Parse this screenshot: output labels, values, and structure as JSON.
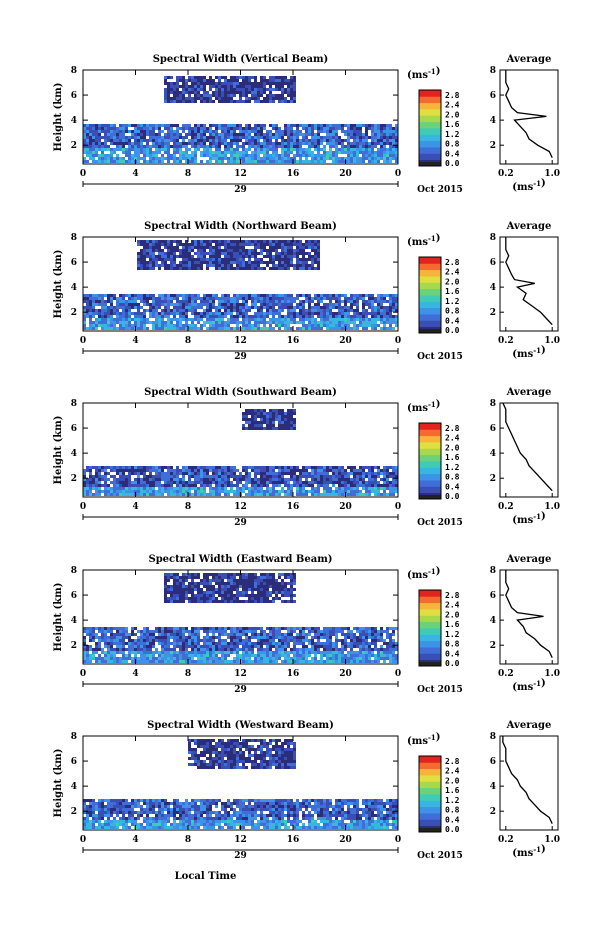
{
  "colors": {
    "colormap": [
      "#2b2c7a",
      "#3a4fb5",
      "#3f6fd6",
      "#3d93e8",
      "#37b6e2",
      "#40cbb4",
      "#6ad27a",
      "#a8d84c",
      "#dfe040",
      "#f6b43a",
      "#f36b2f",
      "#e2241e"
    ]
  },
  "chart_data": [
    {
      "type": "heatmap",
      "title": "Spectral Width (Vertical Beam)",
      "ylabel": "Height (km)",
      "y_ticks": [
        "2",
        "4",
        "6",
        "8"
      ],
      "x_ticks": [
        "0",
        "4",
        "8",
        "12",
        "16",
        "20",
        "0"
      ],
      "date_tick": "29",
      "date_label": "Oct 2015",
      "colorbar_unit": "(ms⁻¹)",
      "colorbar_ticks": [
        "0.0",
        "0.4",
        "0.8",
        "1.2",
        "1.6",
        "2.0",
        "2.4",
        "2.8"
      ],
      "xlim": [
        0,
        24
      ],
      "ylim": [
        0.5,
        8
      ],
      "zlim": [
        0,
        3
      ],
      "regions": [
        {
          "x": [
            0,
            24
          ],
          "y": [
            0.6,
            3.8
          ],
          "z": 0.5
        },
        {
          "x": [
            0,
            24
          ],
          "y": [
            0.6,
            1.8
          ],
          "z": 0.9
        },
        {
          "x": [
            6,
            16
          ],
          "y": [
            5.6,
            7.6
          ],
          "z": 0.2
        }
      ],
      "average_profile": {
        "title": "Average",
        "xlabel": "(ms⁻¹)",
        "x_ticks": [
          "0.2",
          "1.0"
        ],
        "y_ticks": [
          "2",
          "4",
          "6",
          "8"
        ],
        "xlim": [
          0.1,
          1.1
        ],
        "ylim": [
          0.5,
          8
        ],
        "height": [
          1,
          1.5,
          2,
          2.5,
          3,
          3.5,
          4,
          4.3,
          4.6,
          5,
          5.5,
          6,
          6.5,
          7,
          7.5,
          8
        ],
        "width": [
          1.0,
          0.95,
          0.75,
          0.6,
          0.55,
          0.45,
          0.35,
          0.9,
          0.4,
          0.3,
          0.25,
          0.2,
          0.25,
          0.2,
          0.2,
          0.2
        ]
      }
    },
    {
      "type": "heatmap",
      "title": "Spectral Width (Northward Beam)",
      "ylabel": "Height (km)",
      "y_ticks": [
        "2",
        "4",
        "6",
        "8"
      ],
      "x_ticks": [
        "0",
        "4",
        "8",
        "12",
        "16",
        "20",
        "0"
      ],
      "date_tick": "29",
      "date_label": "Oct 2015",
      "colorbar_unit": "(ms⁻¹)",
      "colorbar_ticks": [
        "0.0",
        "0.4",
        "0.8",
        "1.2",
        "1.6",
        "2.0",
        "2.4",
        "2.8"
      ],
      "xlim": [
        0,
        24
      ],
      "ylim": [
        0.5,
        8
      ],
      "zlim": [
        0,
        3
      ],
      "regions": [
        {
          "x": [
            0,
            24
          ],
          "y": [
            0.6,
            3.6
          ],
          "z": 0.5
        },
        {
          "x": [
            0,
            24
          ],
          "y": [
            0.6,
            1.6
          ],
          "z": 0.9
        },
        {
          "x": [
            4,
            18
          ],
          "y": [
            5.6,
            7.8
          ],
          "z": 0.2
        }
      ],
      "average_profile": {
        "title": "Average",
        "xlabel": "(ms⁻¹)",
        "x_ticks": [
          "0.2",
          "1.0"
        ],
        "y_ticks": [
          "2",
          "4",
          "6",
          "8"
        ],
        "xlim": [
          0.1,
          1.1
        ],
        "ylim": [
          0.5,
          8
        ],
        "height": [
          1,
          1.5,
          2,
          2.5,
          3,
          3.5,
          4,
          4.3,
          4.6,
          5,
          5.5,
          6,
          6.5,
          7,
          7.5,
          8
        ],
        "width": [
          1.0,
          0.9,
          0.8,
          0.65,
          0.5,
          0.55,
          0.4,
          0.7,
          0.35,
          0.3,
          0.25,
          0.2,
          0.25,
          0.2,
          0.2,
          0.2
        ]
      }
    },
    {
      "type": "heatmap",
      "title": "Spectral Width (Southward Beam)",
      "ylabel": "Height (km)",
      "y_ticks": [
        "2",
        "4",
        "6",
        "8"
      ],
      "x_ticks": [
        "0",
        "4",
        "8",
        "12",
        "16",
        "20",
        "0"
      ],
      "date_tick": "29",
      "date_label": "Oct 2015",
      "colorbar_unit": "(ms⁻¹)",
      "colorbar_ticks": [
        "0.0",
        "0.4",
        "0.8",
        "1.2",
        "1.6",
        "2.0",
        "2.4",
        "2.8"
      ],
      "xlim": [
        0,
        24
      ],
      "ylim": [
        0.5,
        8
      ],
      "zlim": [
        0,
        3
      ],
      "regions": [
        {
          "x": [
            0,
            24
          ],
          "y": [
            0.6,
            3.2
          ],
          "z": 0.4
        },
        {
          "x": [
            0,
            24
          ],
          "y": [
            0.6,
            1.4
          ],
          "z": 0.9
        },
        {
          "x": [
            12,
            16
          ],
          "y": [
            6.0,
            7.6
          ],
          "z": 0.2
        }
      ],
      "average_profile": {
        "title": "Average",
        "xlabel": "(ms⁻¹)",
        "x_ticks": [
          "0.2",
          "1.0"
        ],
        "y_ticks": [
          "2",
          "4",
          "6",
          "8"
        ],
        "xlim": [
          0.1,
          1.1
        ],
        "ylim": [
          0.5,
          8
        ],
        "height": [
          1,
          1.5,
          2,
          2.5,
          3,
          3.5,
          4,
          4.5,
          5,
          5.5,
          6,
          6.5,
          7,
          7.5,
          8
        ],
        "width": [
          1.0,
          0.9,
          0.8,
          0.7,
          0.6,
          0.55,
          0.45,
          0.4,
          0.35,
          0.3,
          0.25,
          0.2,
          0.2,
          0.2,
          0.15
        ]
      }
    },
    {
      "type": "heatmap",
      "title": "Spectral Width (Eastward Beam)",
      "ylabel": "Height (km)",
      "y_ticks": [
        "2",
        "4",
        "6",
        "8"
      ],
      "x_ticks": [
        "0",
        "4",
        "8",
        "12",
        "16",
        "20",
        "0"
      ],
      "date_tick": "29",
      "date_label": "Oct 2015",
      "colorbar_unit": "(ms⁻¹)",
      "colorbar_ticks": [
        "0.0",
        "0.4",
        "0.8",
        "1.2",
        "1.6",
        "2.0",
        "2.4",
        "2.8"
      ],
      "xlim": [
        0,
        24
      ],
      "ylim": [
        0.5,
        8
      ],
      "zlim": [
        0,
        3
      ],
      "regions": [
        {
          "x": [
            0,
            24
          ],
          "y": [
            0.6,
            3.6
          ],
          "z": 0.5
        },
        {
          "x": [
            0,
            24
          ],
          "y": [
            0.6,
            1.6
          ],
          "z": 0.9
        },
        {
          "x": [
            6,
            16
          ],
          "y": [
            5.6,
            7.8
          ],
          "z": 0.2
        }
      ],
      "average_profile": {
        "title": "Average",
        "xlabel": "(ms⁻¹)",
        "x_ticks": [
          "0.2",
          "1.0"
        ],
        "y_ticks": [
          "2",
          "4",
          "6",
          "8"
        ],
        "xlim": [
          0.1,
          1.1
        ],
        "ylim": [
          0.5,
          8
        ],
        "height": [
          1,
          1.5,
          2,
          2.5,
          3,
          3.5,
          4,
          4.3,
          4.6,
          5,
          5.5,
          6,
          6.5,
          7,
          7.5,
          8
        ],
        "width": [
          1.0,
          0.95,
          0.8,
          0.7,
          0.55,
          0.5,
          0.4,
          0.85,
          0.4,
          0.3,
          0.25,
          0.2,
          0.25,
          0.2,
          0.2,
          0.2
        ]
      }
    },
    {
      "type": "heatmap",
      "title": "Spectral Width (Westward Beam)",
      "ylabel": "Height (km)",
      "y_ticks": [
        "2",
        "4",
        "6",
        "8"
      ],
      "x_ticks": [
        "0",
        "4",
        "8",
        "12",
        "16",
        "20",
        "0"
      ],
      "date_tick": "29",
      "date_label": "Oct 2015",
      "colorbar_unit": "(ms⁻¹)",
      "colorbar_ticks": [
        "0.0",
        "0.4",
        "0.8",
        "1.2",
        "1.6",
        "2.0",
        "2.4",
        "2.8"
      ],
      "xlim": [
        0,
        24
      ],
      "ylim": [
        0.5,
        8
      ],
      "zlim": [
        0,
        3
      ],
      "regions": [
        {
          "x": [
            0,
            24
          ],
          "y": [
            0.6,
            3.2
          ],
          "z": 0.5
        },
        {
          "x": [
            0,
            24
          ],
          "y": [
            0.6,
            1.4
          ],
          "z": 0.9
        },
        {
          "x": [
            8,
            16
          ],
          "y": [
            5.6,
            7.8
          ],
          "z": 0.2
        }
      ],
      "average_profile": {
        "title": "Average",
        "xlabel": "(ms⁻¹)",
        "x_ticks": [
          "0.2",
          "1.0"
        ],
        "y_ticks": [
          "2",
          "4",
          "6",
          "8"
        ],
        "xlim": [
          0.1,
          1.1
        ],
        "ylim": [
          0.5,
          8
        ],
        "height": [
          1,
          1.5,
          2,
          2.5,
          3,
          3.5,
          4,
          4.5,
          5,
          5.5,
          6,
          6.5,
          7,
          7.5,
          8
        ],
        "width": [
          1.0,
          0.95,
          0.8,
          0.7,
          0.6,
          0.55,
          0.45,
          0.4,
          0.3,
          0.25,
          0.2,
          0.2,
          0.2,
          0.15,
          0.15
        ]
      }
    }
  ],
  "xaxis_label": "Local Time"
}
